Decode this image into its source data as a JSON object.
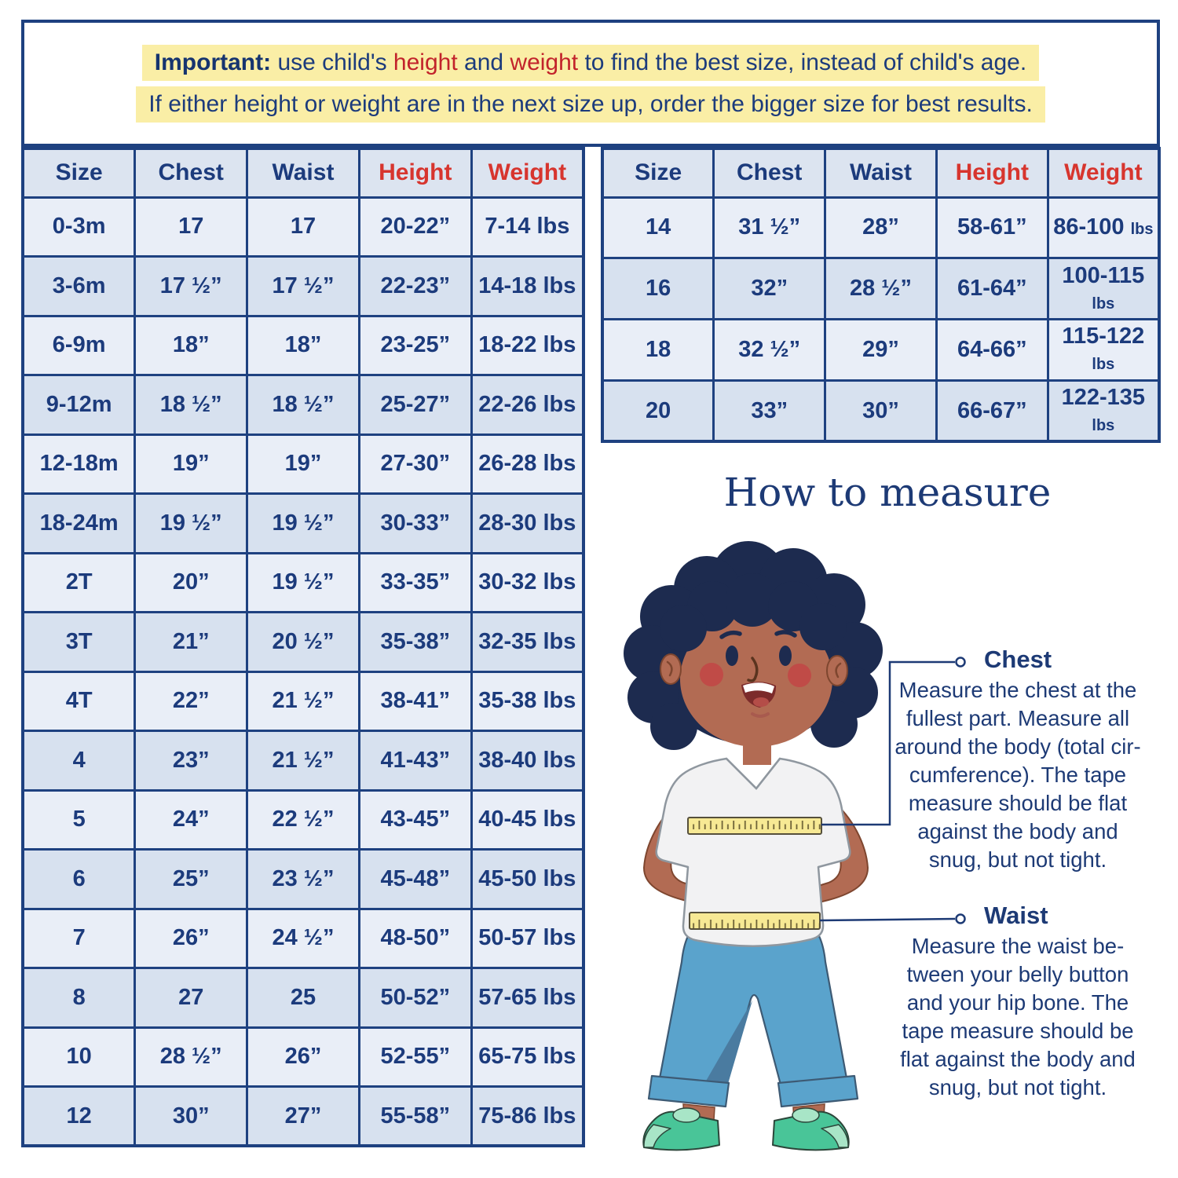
{
  "banner": {
    "line1": {
      "prefix": "Important:",
      "part1": " use child's ",
      "highlight1": "height",
      "part2": " and ",
      "highlight2": "weight",
      "part3": " to find the best size, instead of child's age."
    },
    "line2": "If either height or weight are in the next size up, order the bigger size for best results."
  },
  "tables": {
    "columns": [
      {
        "label": "Size",
        "red": false
      },
      {
        "label": "Chest",
        "red": false
      },
      {
        "label": "Waist",
        "red": false
      },
      {
        "label": "Height",
        "red": true
      },
      {
        "label": "Weight",
        "red": true
      }
    ],
    "left": {
      "rows": [
        [
          "0-3m",
          "17",
          "17",
          "20-22”",
          "7-14 lbs"
        ],
        [
          "3-6m",
          "17 ½”",
          "17 ½”",
          "22-23”",
          "14-18 lbs"
        ],
        [
          "6-9m",
          "18”",
          "18”",
          "23-25”",
          "18-22 lbs"
        ],
        [
          "9-12m",
          "18 ½”",
          "18 ½”",
          "25-27”",
          "22-26 lbs"
        ],
        [
          "12-18m",
          "19”",
          "19”",
          "27-30”",
          "26-28 lbs"
        ],
        [
          "18-24m",
          "19 ½”",
          "19 ½”",
          "30-33”",
          "28-30 lbs"
        ],
        [
          "2T",
          "20”",
          "19 ½”",
          "33-35”",
          "30-32 lbs"
        ],
        [
          "3T",
          "21”",
          "20 ½”",
          "35-38”",
          "32-35 lbs"
        ],
        [
          "4T",
          "22”",
          "21 ½”",
          "38-41”",
          "35-38 lbs"
        ],
        [
          "4",
          "23”",
          "21 ½”",
          "41-43”",
          "38-40 lbs"
        ],
        [
          "5",
          "24”",
          "22 ½”",
          "43-45”",
          "40-45 lbs"
        ],
        [
          "6",
          "25”",
          "23 ½”",
          "45-48”",
          "45-50 lbs"
        ],
        [
          "7",
          "26”",
          "24 ½”",
          "48-50”",
          "50-57 lbs"
        ],
        [
          "8",
          "27",
          "25",
          "50-52”",
          "57-65 lbs"
        ],
        [
          "10",
          "28 ½”",
          "26”",
          "52-55”",
          "65-75 lbs"
        ],
        [
          "12",
          "30”",
          "27”",
          "55-58”",
          "75-86 lbs"
        ]
      ]
    },
    "right": {
      "rows": [
        [
          "14",
          "31 ½”",
          "28”",
          "58-61”",
          {
            "text": "86-100",
            "small": "lbs"
          }
        ],
        [
          "16",
          "32”",
          "28 ½”",
          "61-64”",
          {
            "text": "100-115",
            "small": "lbs"
          }
        ],
        [
          "18",
          "32 ½”",
          "29”",
          "64-66”",
          {
            "text": "115-122",
            "small": "lbs"
          }
        ],
        [
          "20",
          "33”",
          "30”",
          "66-67”",
          {
            "text": "122-135",
            "small": "lbs"
          }
        ]
      ]
    }
  },
  "how_to_measure": {
    "title": "How to measure",
    "chest": {
      "label": "Chest",
      "description": "Measure the chest at the\nfullest part. Measure all\naround the body (total cir-\ncumference). The tape\nmeasure should be flat\nagainst the body and\nsnug, but not tight."
    },
    "waist": {
      "label": "Waist",
      "description": "Measure the waist be-\ntween your belly button\nand your hip bone. The\ntape measure should be\nflat against the body and\nsnug, but not tight."
    }
  },
  "icons": {
    "chest_marker": "circle-marker",
    "waist_marker": "circle-marker",
    "illustration": "boy-with-measuring-tapes"
  },
  "colors": {
    "navy_text": "#1c3b7c",
    "navy_border": "#1e4180",
    "red_header": "#d7352e",
    "red_banner": "#c2232b",
    "yellow_highlight": "#faeea6",
    "header_bg": "#dce4f0",
    "row_light": "#e9eef7",
    "row_dark": "#d7e1ef",
    "tape_yellow": "#f7e994",
    "pants_blue": "#5aa3cc",
    "shoe_green": "#49c598",
    "skin_brown": "#b26b53",
    "hair_navy": "#1d2b4f"
  }
}
